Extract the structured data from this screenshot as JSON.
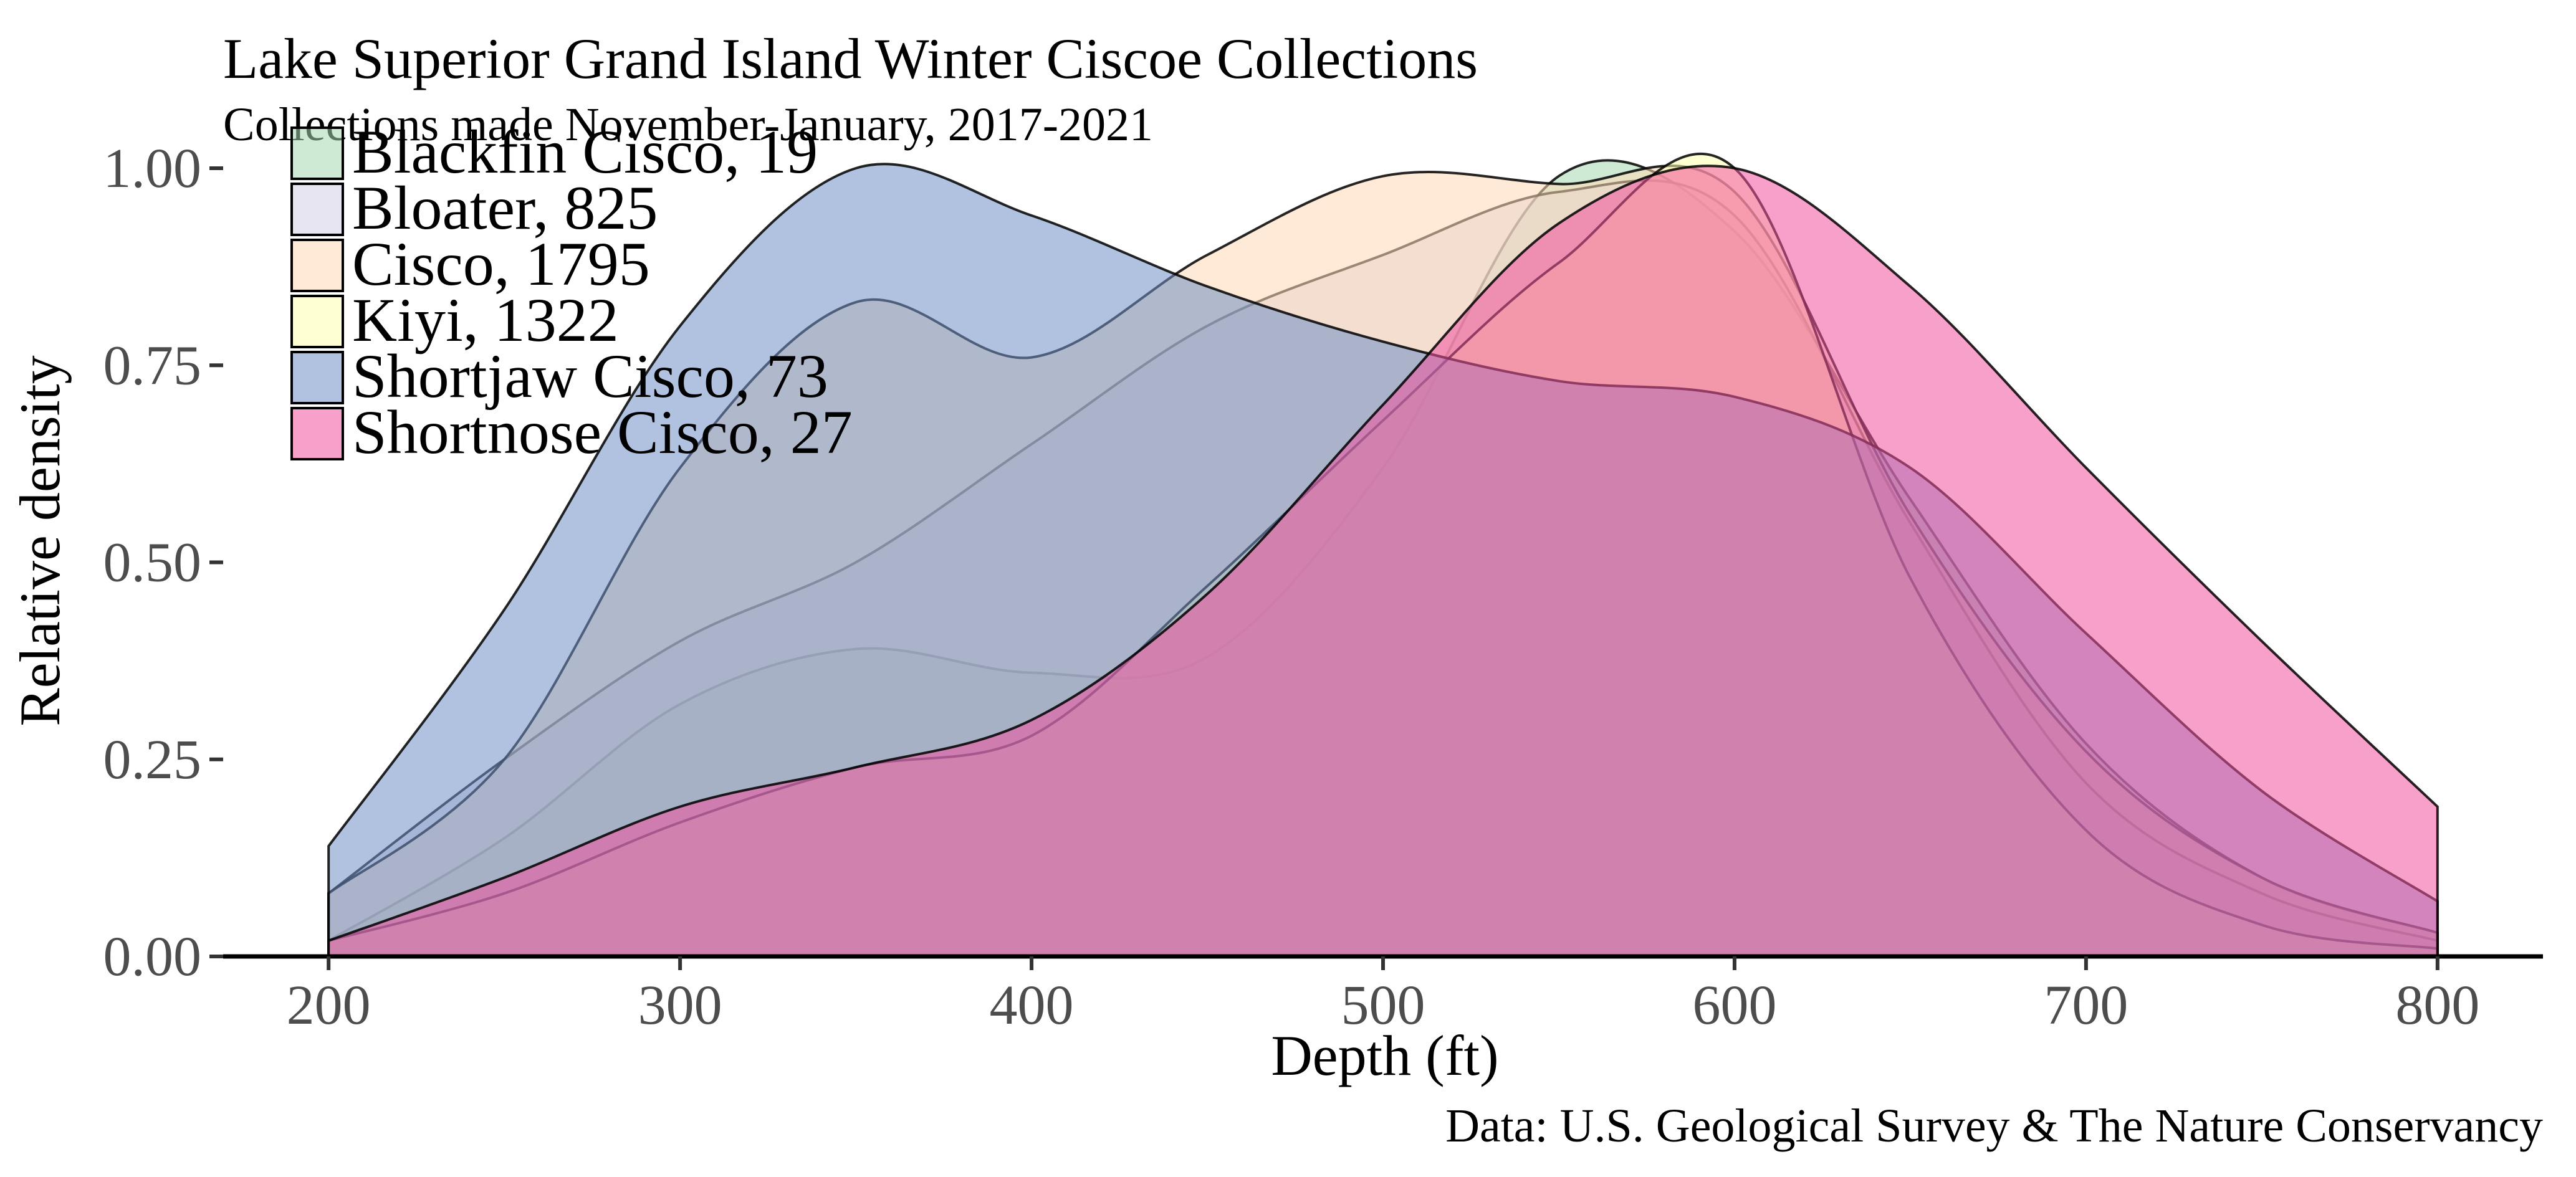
{
  "chart_data": {
    "type": "area",
    "title": "Lake Superior Grand Island Winter Ciscoe Collections",
    "subtitle": "Collections made November-January, 2017-2021",
    "xlabel": "Depth (ft)",
    "ylabel": "Relative density",
    "caption": "Data: U.S. Geological Survey & The Nature Conservancy",
    "xlim": [
      170,
      830
    ],
    "ylim": [
      0,
      1.0
    ],
    "x_ticks": [
      "200",
      "300",
      "400",
      "500",
      "600",
      "700",
      "800"
    ],
    "y_ticks": [
      "0.00",
      "0.25",
      "0.50",
      "0.75",
      "1.00"
    ],
    "grid": false,
    "legend_position": "top-left",
    "x": [
      200,
      250,
      300,
      350,
      400,
      450,
      500,
      550,
      600,
      650,
      700,
      750,
      800
    ],
    "series": [
      {
        "name": "Blackfin Cisco, 19",
        "color": "#a6d9b3",
        "values": [
          0.02,
          0.15,
          0.32,
          0.39,
          0.36,
          0.38,
          0.62,
          0.99,
          0.92,
          0.58,
          0.27,
          0.1,
          0.03
        ]
      },
      {
        "name": "Bloater, 825",
        "color": "#d6cfe8",
        "values": [
          0.08,
          0.25,
          0.4,
          0.5,
          0.65,
          0.8,
          0.89,
          0.97,
          0.94,
          0.55,
          0.22,
          0.08,
          0.02
        ]
      },
      {
        "name": "Cisco, 1795",
        "color": "#fdd9b5",
        "values": [
          0.08,
          0.25,
          0.62,
          0.83,
          0.76,
          0.89,
          0.99,
          0.98,
          0.97,
          0.56,
          0.26,
          0.1,
          0.03
        ]
      },
      {
        "name": "Kiyi, 1322",
        "color": "#ffffb0",
        "values": [
          0.02,
          0.08,
          0.17,
          0.24,
          0.28,
          0.47,
          0.68,
          0.88,
          1.0,
          0.48,
          0.16,
          0.04,
          0.01
        ]
      },
      {
        "name": "Shortjaw Cisco, 73",
        "color": "#6f8fc4",
        "values": [
          0.14,
          0.44,
          0.8,
          1.0,
          0.94,
          0.85,
          0.78,
          0.73,
          0.71,
          0.62,
          0.41,
          0.21,
          0.07
        ]
      },
      {
        "name": "Shortnose Cisco, 27",
        "color": "#f0529f",
        "values": [
          0.02,
          0.1,
          0.19,
          0.24,
          0.3,
          0.46,
          0.7,
          0.93,
          1.0,
          0.85,
          0.62,
          0.4,
          0.19
        ]
      }
    ]
  }
}
